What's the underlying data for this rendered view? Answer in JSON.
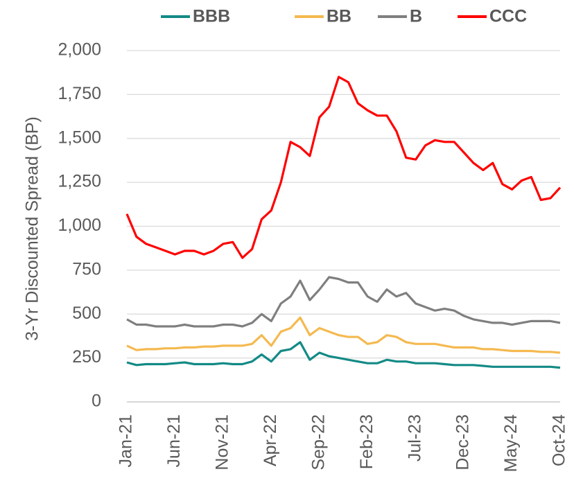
{
  "chart_data": {
    "type": "line",
    "y_label": "3-Yr Discounted Spread (BP)",
    "categories": [
      "Jan-21",
      null,
      null,
      null,
      null,
      "Jun-21",
      null,
      null,
      null,
      null,
      "Nov-21",
      null,
      null,
      null,
      null,
      "Apr-22",
      null,
      null,
      null,
      null,
      "Sep-22",
      null,
      null,
      null,
      null,
      "Feb-23",
      null,
      null,
      null,
      null,
      "Jul-23",
      null,
      null,
      null,
      null,
      "Dec-23",
      null,
      null,
      null,
      null,
      "May-24",
      null,
      null,
      null,
      null,
      "Oct-24"
    ],
    "series": [
      {
        "name": "BBB",
        "color": "#138a86",
        "values": [
          225,
          210,
          215,
          215,
          215,
          220,
          225,
          215,
          215,
          215,
          220,
          215,
          215,
          230,
          270,
          230,
          290,
          300,
          340,
          240,
          280,
          260,
          250,
          240,
          230,
          220,
          220,
          240,
          230,
          230,
          220,
          220,
          220,
          215,
          210,
          210,
          210,
          205,
          200,
          200,
          200,
          200,
          200,
          200,
          200,
          195
        ]
      },
      {
        "name": "BB",
        "color": "#f5b950",
        "values": [
          320,
          295,
          300,
          300,
          305,
          305,
          310,
          310,
          315,
          315,
          320,
          320,
          320,
          330,
          380,
          320,
          400,
          420,
          480,
          380,
          420,
          400,
          380,
          370,
          370,
          330,
          340,
          380,
          370,
          340,
          330,
          330,
          330,
          320,
          310,
          310,
          310,
          300,
          300,
          295,
          290,
          290,
          290,
          285,
          285,
          280
        ]
      },
      {
        "name": "B",
        "color": "#7f7f7f",
        "values": [
          470,
          440,
          440,
          430,
          430,
          430,
          440,
          430,
          430,
          430,
          440,
          440,
          430,
          450,
          500,
          460,
          560,
          600,
          690,
          580,
          640,
          710,
          700,
          680,
          680,
          600,
          570,
          640,
          600,
          620,
          560,
          540,
          520,
          530,
          520,
          490,
          470,
          460,
          450,
          450,
          440,
          450,
          460,
          460,
          460,
          450
        ]
      },
      {
        "name": "CCC",
        "color": "#ff0000",
        "values": [
          1070,
          940,
          900,
          880,
          860,
          840,
          860,
          860,
          840,
          860,
          900,
          910,
          820,
          870,
          1040,
          1090,
          1250,
          1480,
          1450,
          1400,
          1620,
          1680,
          1850,
          1820,
          1700,
          1660,
          1630,
          1630,
          1540,
          1390,
          1380,
          1460,
          1490,
          1480,
          1480,
          1420,
          1360,
          1320,
          1360,
          1240,
          1210,
          1260,
          1280,
          1150,
          1160,
          1220
        ]
      }
    ],
    "ylim": [
      0,
      2000
    ],
    "yticks": [
      0,
      250,
      500,
      750,
      {
        "value": 1000,
        "label": "1,000"
      },
      {
        "value": 1250,
        "label": "1,250"
      },
      {
        "value": 1500,
        "label": "1,500"
      },
      {
        "value": 1750,
        "label": "1,750"
      },
      {
        "value": 2000,
        "label": "2,000"
      }
    ],
    "grid": true,
    "legend": "top"
  }
}
